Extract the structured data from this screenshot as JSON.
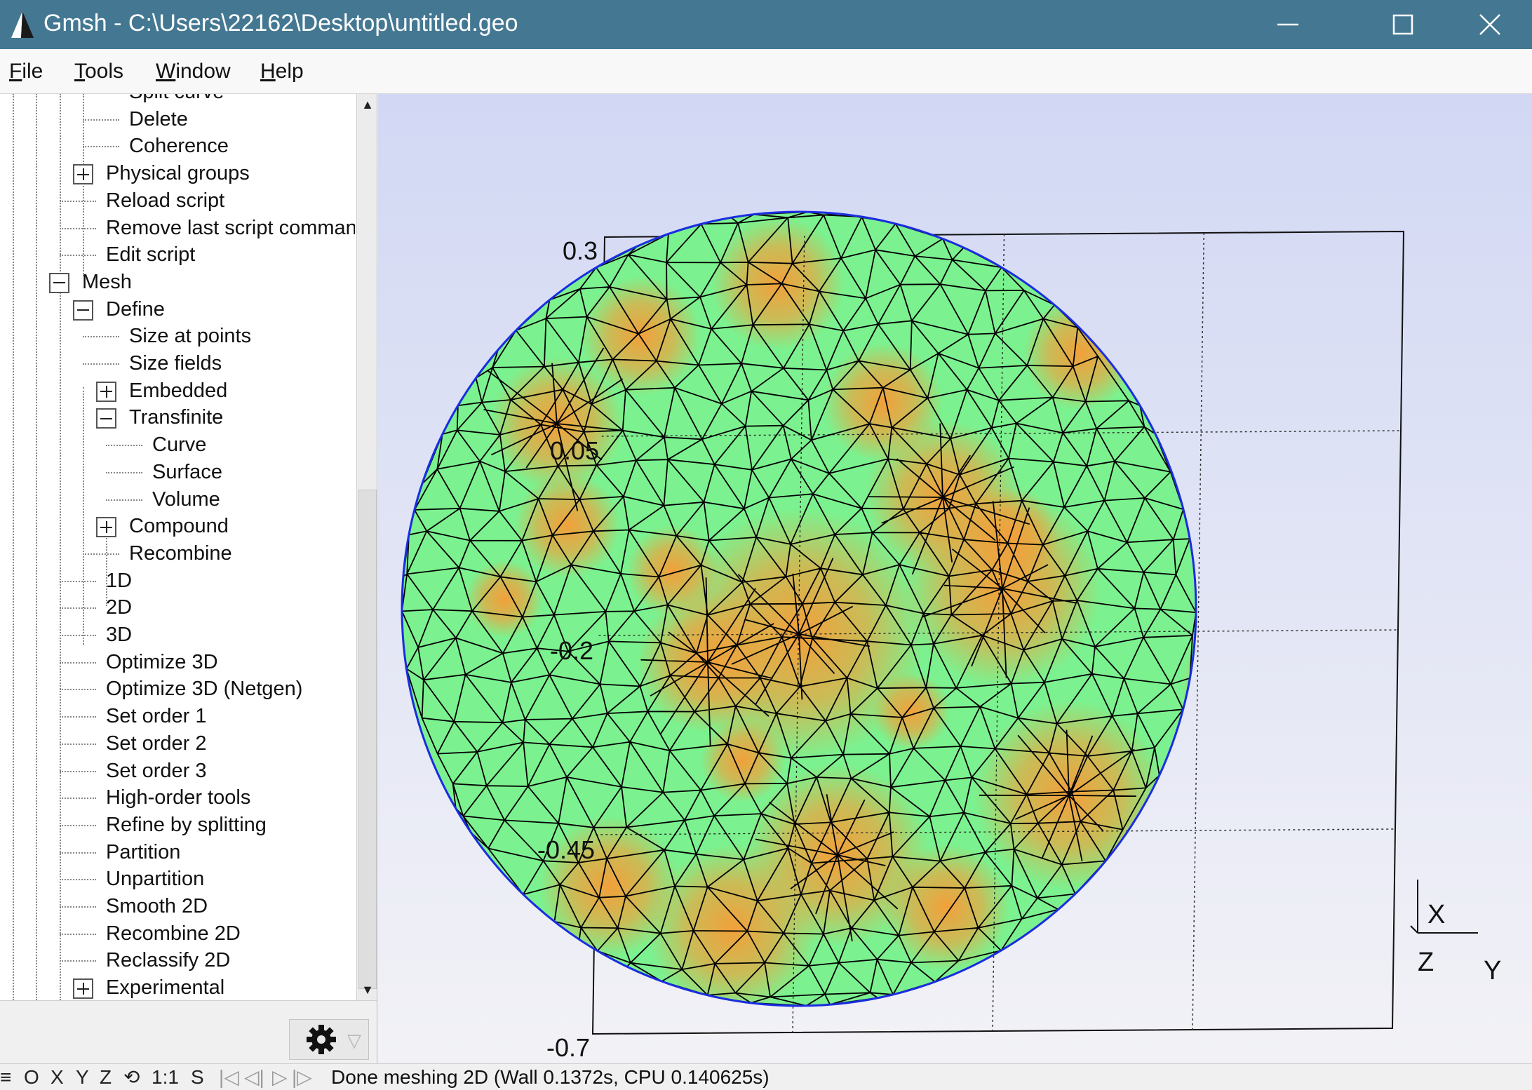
{
  "window": {
    "title": "Gmsh - C:\\Users\\22162\\Desktop\\untitled.geo",
    "minimize_icon": "minimize-icon",
    "maximize_icon": "maximize-icon",
    "close_icon": "close-icon"
  },
  "menu": [
    {
      "key": "F",
      "rest": "ile"
    },
    {
      "key": "T",
      "rest": "ools"
    },
    {
      "key": "W",
      "rest": "indow"
    },
    {
      "key": "H",
      "rest": "elp"
    }
  ],
  "tree": [
    {
      "label": "Split curve",
      "level": 3,
      "toggle": "none"
    },
    {
      "label": "Delete",
      "level": 3,
      "toggle": "none"
    },
    {
      "label": "Coherence",
      "level": 3,
      "toggle": "none"
    },
    {
      "label": "Physical groups",
      "level": 2,
      "toggle": "plus"
    },
    {
      "label": "Reload script",
      "level": 2,
      "toggle": "none"
    },
    {
      "label": "Remove last script command",
      "level": 2,
      "toggle": "none"
    },
    {
      "label": "Edit script",
      "level": 2,
      "toggle": "none"
    },
    {
      "label": "Mesh",
      "level": 1,
      "toggle": "minus"
    },
    {
      "label": "Define",
      "level": 2,
      "toggle": "minus"
    },
    {
      "label": "Size at points",
      "level": 3,
      "toggle": "none"
    },
    {
      "label": "Size fields",
      "level": 3,
      "toggle": "none"
    },
    {
      "label": "Embedded",
      "level": 3,
      "toggle": "plus"
    },
    {
      "label": "Transfinite",
      "level": 3,
      "toggle": "minus"
    },
    {
      "label": "Curve",
      "level": 4,
      "toggle": "none"
    },
    {
      "label": "Surface",
      "level": 4,
      "toggle": "none"
    },
    {
      "label": "Volume",
      "level": 4,
      "toggle": "none"
    },
    {
      "label": "Compound",
      "level": 3,
      "toggle": "plus"
    },
    {
      "label": "Recombine",
      "level": 3,
      "toggle": "none"
    },
    {
      "label": "1D",
      "level": 2,
      "toggle": "none"
    },
    {
      "label": "2D",
      "level": 2,
      "toggle": "none"
    },
    {
      "label": "3D",
      "level": 2,
      "toggle": "none"
    },
    {
      "label": "Optimize 3D",
      "level": 2,
      "toggle": "none"
    },
    {
      "label": "Optimize 3D (Netgen)",
      "level": 2,
      "toggle": "none"
    },
    {
      "label": "Set order 1",
      "level": 2,
      "toggle": "none"
    },
    {
      "label": "Set order 2",
      "level": 2,
      "toggle": "none"
    },
    {
      "label": "Set order 3",
      "level": 2,
      "toggle": "none"
    },
    {
      "label": "High-order tools",
      "level": 2,
      "toggle": "none"
    },
    {
      "label": "Refine by splitting",
      "level": 2,
      "toggle": "none"
    },
    {
      "label": "Partition",
      "level": 2,
      "toggle": "none"
    },
    {
      "label": "Unpartition",
      "level": 2,
      "toggle": "none"
    },
    {
      "label": "Smooth 2D",
      "level": 2,
      "toggle": "none"
    },
    {
      "label": "Recombine 2D",
      "level": 2,
      "toggle": "none"
    },
    {
      "label": "Reclassify 2D",
      "level": 2,
      "toggle": "none"
    },
    {
      "label": "Experimental",
      "level": 2,
      "toggle": "plus"
    }
  ],
  "tree_panel": {
    "scroll_up_icon": "scroll-up-arrow",
    "scroll_down_icon": "scroll-down-arrow",
    "gear_icon": "gear-icon",
    "gear_caret": "▽"
  },
  "graphics": {
    "axis_ticks": [
      "0.3",
      "0.05",
      "-0.2",
      "-0.45",
      "-0.7"
    ],
    "axes_labels": {
      "x": "X",
      "y": "Y",
      "z": "Z"
    },
    "colors": {
      "background_top": "#d2d8f4",
      "background_bottom": "#f2f2f6",
      "surface_fill": "#7cf18f",
      "size_field_glow": "#f2a03a",
      "mesh_edges": "#000000",
      "boundary": "#1a2de0"
    }
  },
  "statusbar": {
    "menu_icon": "≡",
    "items": [
      "O",
      "X",
      "Y",
      "Z",
      "1:1",
      "S"
    ],
    "rotate_icon": "⟲",
    "anim_first": "|◁",
    "anim_prev": "◁|",
    "anim_play": "▷",
    "anim_next": "|▷",
    "message": "Done meshing 2D (Wall 0.1372s, CPU 0.140625s)"
  }
}
